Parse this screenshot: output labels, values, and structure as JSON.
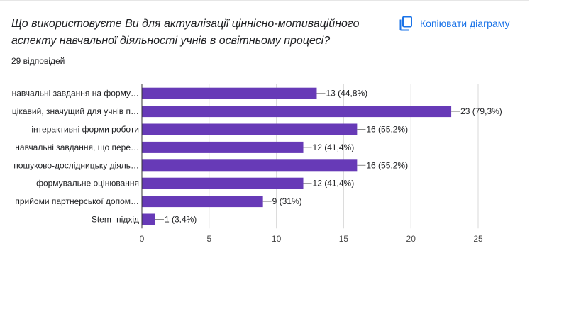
{
  "question": "Що  використовуєте Ви для актуалізації ціннісно-мотиваційного аспекту навчальної діяльності учнів в освітньому процесі?",
  "responses_count": "29 відповідей",
  "copy_button_label": "Копіювати діаграму",
  "colors": {
    "bar": "#673ab7",
    "link": "#1a73e8",
    "text": "#202124",
    "grid": "#d9d9d9"
  },
  "chart_data": {
    "type": "bar",
    "orientation": "horizontal",
    "categories": [
      "навчальні завдання на форму…",
      "цікавий, значущий для учнів п…",
      "інтерактивні форми роботи",
      "навчальні завдання, що пере…",
      "пошуково-дослідницьку діяль…",
      "формувальне оцінювання",
      "прийоми партнерської допом…",
      "Stem- підхід"
    ],
    "values": [
      13,
      23,
      16,
      12,
      16,
      12,
      9,
      1
    ],
    "data_labels": [
      "13 (44,8%)",
      "23 (79,3%)",
      "16 (55,2%)",
      "12 (41,4%)",
      "16 (55,2%)",
      "12 (41,4%)",
      "9 (31%)",
      "1 (3,4%)"
    ],
    "xticks": [
      0,
      5,
      10,
      15,
      20,
      25
    ],
    "xlim": [
      0,
      25
    ],
    "grid": true
  }
}
